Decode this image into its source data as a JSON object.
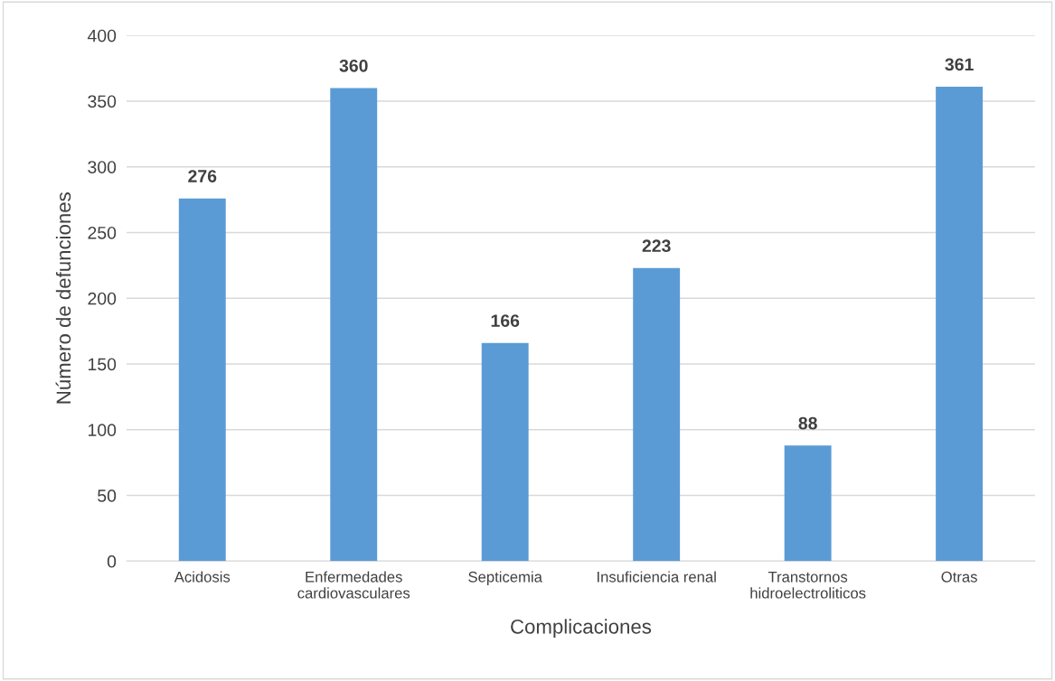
{
  "chart_data": {
    "type": "bar",
    "xlabel": "Complicaciones",
    "ylabel": "Número de defunciones",
    "categories": [
      "Acidosis",
      "Enfermedades\ncardiovasculares",
      "Septicemia",
      "Insuficiencia renal",
      "Transtornos\nhidroelectroliticos",
      "Otras"
    ],
    "values": [
      276,
      360,
      166,
      223,
      88,
      361
    ],
    "color": "#5b9bd5",
    "ylim": [
      0,
      400
    ],
    "yticks": [
      0,
      50,
      100,
      150,
      200,
      250,
      300,
      350,
      400
    ],
    "grid": "y",
    "data_labels": true
  }
}
